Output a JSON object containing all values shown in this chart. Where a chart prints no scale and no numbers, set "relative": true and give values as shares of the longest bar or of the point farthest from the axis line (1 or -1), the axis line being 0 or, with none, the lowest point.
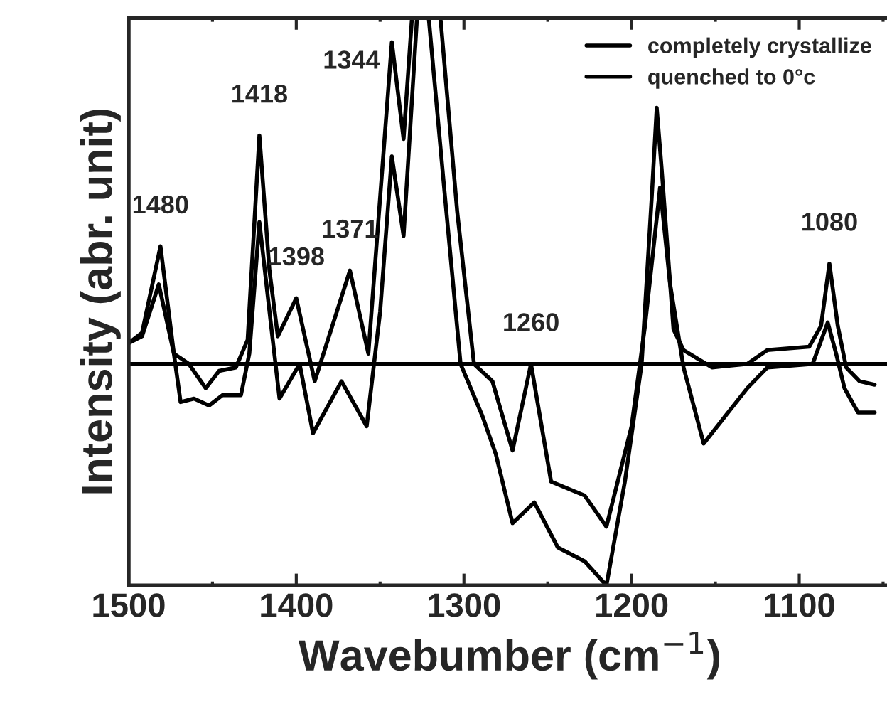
{
  "chart_data": {
    "type": "line",
    "relative": true,
    "xlabel": "Wavebumber (cm$^{−1}$)",
    "ylabel": "Intensity (abr. unit)",
    "xlim": [
      1500,
      1045
    ],
    "xticks": [
      1500,
      1400,
      1300,
      1200,
      1100
    ],
    "legend": "top right",
    "grid": false,
    "marker": "none",
    "line_style": "solid",
    "ref_lines": [
      {
        "axis": "y",
        "value": 0,
        "color": "#000000"
      }
    ],
    "annotations": [
      {
        "text": "1480",
        "x": 1481,
        "y": 0.34
      },
      {
        "text": "1418",
        "x": 1422,
        "y": 0.66
      },
      {
        "text": "1398",
        "x": 1400,
        "y": 0.19
      },
      {
        "text": "1371",
        "x": 1368,
        "y": 0.27
      },
      {
        "text": "1344",
        "x": 1343,
        "y": 0.93
      },
      {
        "text": "1260",
        "x": 1260,
        "y": 0.0
      },
      {
        "text": "1080",
        "x": 1082,
        "y": 0.29
      }
    ],
    "series": [
      {
        "name": "completely crystallize",
        "color": "#000000",
        "x": [
          1500,
          1492,
          1481,
          1473,
          1464,
          1454,
          1446,
          1436,
          1429,
          1422,
          1416,
          1411,
          1400,
          1389,
          1368,
          1357,
          1343,
          1336,
          1331,
          1321,
          1312,
          1302,
          1289,
          1281,
          1271,
          1258,
          1244,
          1228,
          1215,
          1204,
          1194,
          1188,
          1185,
          1182,
          1175,
          1169,
          1152,
          1131,
          1119,
          1094,
          1087,
          1082,
          1077,
          1072,
          1064,
          1055
        ],
        "values": [
          0.06,
          0.09,
          0.34,
          0.03,
          0.0,
          -0.07,
          -0.02,
          -0.01,
          0.07,
          0.66,
          0.27,
          0.08,
          0.19,
          -0.05,
          0.27,
          0.03,
          0.93,
          0.65,
          1.0,
          1.0,
          0.52,
          0.0,
          -0.15,
          -0.26,
          -0.46,
          -0.4,
          -0.53,
          -0.57,
          -0.64,
          -0.34,
          0.0,
          0.48,
          0.74,
          0.56,
          0.1,
          0.04,
          -0.01,
          0.0,
          0.04,
          0.05,
          0.11,
          0.29,
          0.11,
          -0.01,
          -0.05,
          -0.06
        ]
      },
      {
        "name": "quenched to 0°c",
        "color": "#000000",
        "x": [
          1500,
          1492,
          1482,
          1473,
          1469,
          1461,
          1452,
          1444,
          1433,
          1428,
          1422,
          1415,
          1410,
          1398,
          1390,
          1373,
          1358,
          1350,
          1343,
          1336,
          1328,
          1314,
          1304,
          1294,
          1283,
          1271,
          1260,
          1248,
          1228,
          1215,
          1200,
          1192,
          1183,
          1177,
          1169,
          1157,
          1131,
          1119,
          1092,
          1083,
          1078,
          1073,
          1065,
          1055
        ],
        "values": [
          0.06,
          0.08,
          0.23,
          0.03,
          -0.11,
          -0.1,
          -0.12,
          -0.09,
          -0.09,
          0.03,
          0.41,
          0.11,
          -0.1,
          0.0,
          -0.2,
          -0.05,
          -0.18,
          0.15,
          0.6,
          0.37,
          1.0,
          1.0,
          0.44,
          0.0,
          -0.05,
          -0.25,
          0.0,
          -0.34,
          -0.38,
          -0.47,
          -0.18,
          0.11,
          0.51,
          0.23,
          -0.01,
          -0.23,
          -0.07,
          -0.01,
          0.0,
          0.12,
          0.03,
          -0.07,
          -0.14,
          -0.14
        ]
      }
    ]
  }
}
